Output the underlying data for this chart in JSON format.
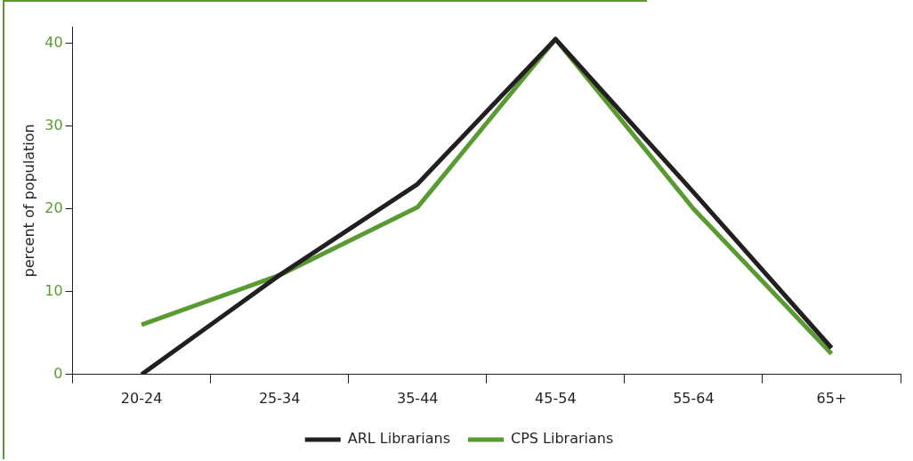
{
  "chart_data": {
    "type": "line",
    "ylabel": "percent of population",
    "categories": [
      "20-24",
      "25-34",
      "35-44",
      "45-54",
      "55-64",
      "65+"
    ],
    "series": [
      {
        "name": "ARL Librarians",
        "color": "#231f20",
        "values": [
          0,
          12,
          23,
          40.5,
          22,
          3.2
        ]
      },
      {
        "name": "CPS Librarians",
        "color": "#5a9a32",
        "values": [
          6,
          12,
          20.2,
          40.5,
          20,
          2.5
        ]
      }
    ],
    "ylim": [
      0,
      42
    ],
    "yticks": [
      0,
      10,
      20,
      30,
      40
    ],
    "grid": false,
    "legend": "bottom",
    "marker": "none",
    "line_style": "solid"
  }
}
